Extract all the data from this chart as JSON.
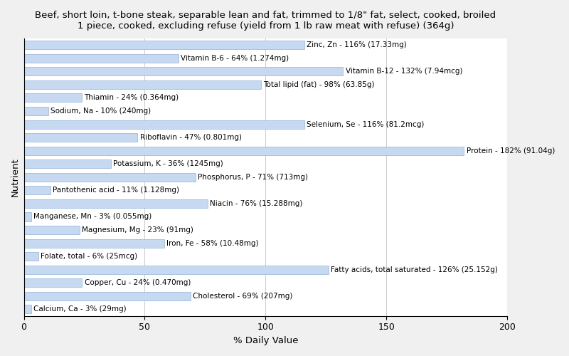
{
  "title": "Beef, short loin, t-bone steak, separable lean and fat, trimmed to 1/8\" fat, select, cooked, broiled\n1 piece, cooked, excluding refuse (yield from 1 lb raw meat with refuse) (364g)",
  "xlabel": "% Daily Value",
  "ylabel": "Nutrient",
  "xlim": [
    0,
    200
  ],
  "xticks": [
    0,
    50,
    100,
    150,
    200
  ],
  "bar_color": "#c6d9f1",
  "bar_edge_color": "#8fb4d9",
  "background_color": "#f0f0f0",
  "plot_bg_color": "#ffffff",
  "nutrients": [
    {
      "label": "Calcium, Ca - 3% (29mg)",
      "value": 3
    },
    {
      "label": "Cholesterol - 69% (207mg)",
      "value": 69
    },
    {
      "label": "Copper, Cu - 24% (0.470mg)",
      "value": 24
    },
    {
      "label": "Fatty acids, total saturated - 126% (25.152g)",
      "value": 126
    },
    {
      "label": "Folate, total - 6% (25mcg)",
      "value": 6
    },
    {
      "label": "Iron, Fe - 58% (10.48mg)",
      "value": 58
    },
    {
      "label": "Magnesium, Mg - 23% (91mg)",
      "value": 23
    },
    {
      "label": "Manganese, Mn - 3% (0.055mg)",
      "value": 3
    },
    {
      "label": "Niacin - 76% (15.288mg)",
      "value": 76
    },
    {
      "label": "Pantothenic acid - 11% (1.128mg)",
      "value": 11
    },
    {
      "label": "Phosphorus, P - 71% (713mg)",
      "value": 71
    },
    {
      "label": "Potassium, K - 36% (1245mg)",
      "value": 36
    },
    {
      "label": "Protein - 182% (91.04g)",
      "value": 182
    },
    {
      "label": "Riboflavin - 47% (0.801mg)",
      "value": 47
    },
    {
      "label": "Selenium, Se - 116% (81.2mcg)",
      "value": 116
    },
    {
      "label": "Sodium, Na - 10% (240mg)",
      "value": 10
    },
    {
      "label": "Thiamin - 24% (0.364mg)",
      "value": 24
    },
    {
      "label": "Total lipid (fat) - 98% (63.85g)",
      "value": 98
    },
    {
      "label": "Vitamin B-12 - 132% (7.94mcg)",
      "value": 132
    },
    {
      "label": "Vitamin B-6 - 64% (1.274mg)",
      "value": 64
    },
    {
      "label": "Zinc, Zn - 116% (17.33mg)",
      "value": 116
    }
  ],
  "title_fontsize": 9.5,
  "axis_label_fontsize": 9.5,
  "tick_fontsize": 9,
  "bar_label_fontsize": 7.5
}
